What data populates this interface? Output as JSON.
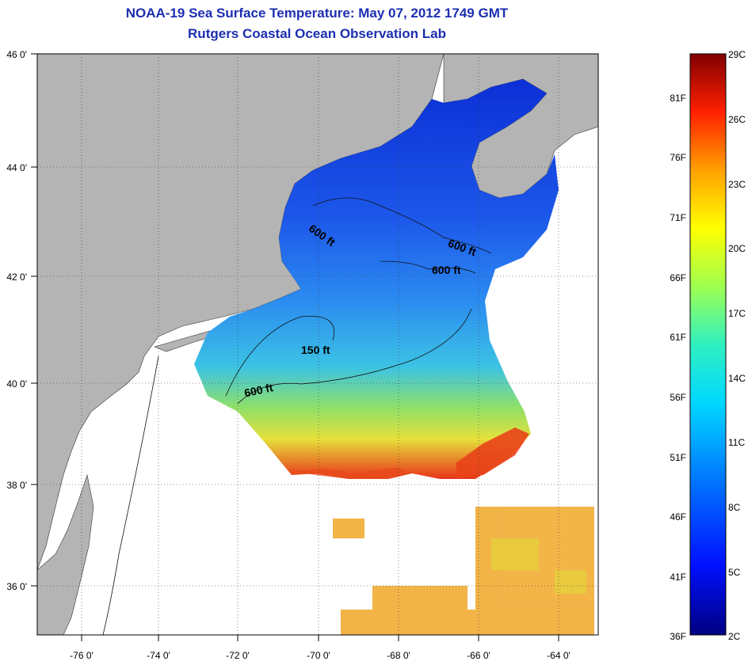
{
  "header": {
    "title": "NOAA-19 Sea Surface Temperature:  May 07, 2012 1749 GMT",
    "subtitle": "Rutgers Coastal Ocean Observation Lab"
  },
  "map": {
    "projection": "lon/lat grid",
    "lon_range": [
      -77,
      -63
    ],
    "lat_range": [
      35,
      46
    ],
    "lon_ticks": [
      "-76 0'",
      "-74 0'",
      "-72 0'",
      "-70 0'",
      "-68 0'",
      "-66 0'",
      "-64 0'"
    ],
    "lat_ticks": [
      "46 0'",
      "44 0'",
      "42 0'",
      "40 0'",
      "38 0'",
      "36 0'"
    ],
    "land_color": "#b4b4b4",
    "no_data_color": "#ffffff",
    "contour_labels": [
      "600 ft",
      "600 ft",
      "600 ft",
      "150 ft",
      "600 ft"
    ]
  },
  "colorbar": {
    "celsius_labels": [
      "29C",
      "26C",
      "23C",
      "20C",
      "17C",
      "14C",
      "11C",
      "8C",
      "5C",
      "2C"
    ],
    "fahrenheit_labels": [
      "81F",
      "76F",
      "71F",
      "66F",
      "61F",
      "56F",
      "51F",
      "46F",
      "41F",
      "36F"
    ],
    "range_c": [
      2,
      29
    ],
    "range_f": [
      36,
      84
    ]
  },
  "palette": {
    "cold": "#0a2bd0",
    "cool": "#2f8ef0",
    "mid": "#35c8e8",
    "mild": "#7fe07a",
    "warm": "#f2c91b",
    "hot": "#e62d10"
  }
}
